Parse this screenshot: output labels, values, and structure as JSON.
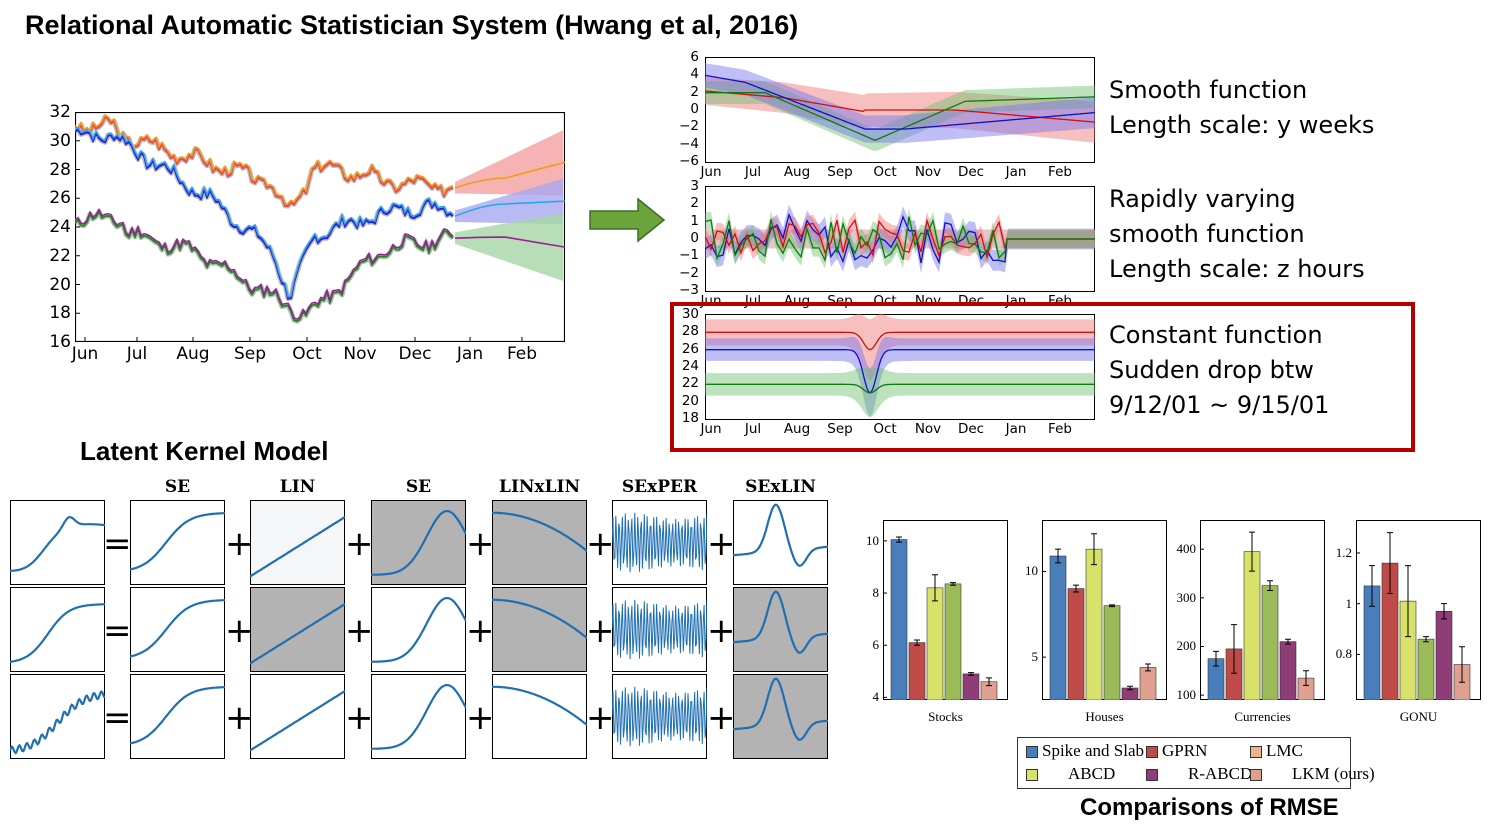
{
  "title": "Relational Automatic Statistician System (Hwang et al, 2016)",
  "months": [
    "Jun",
    "Jul",
    "Aug",
    "Sep",
    "Oct",
    "Nov",
    "Dec",
    "Jan",
    "Feb"
  ],
  "left_chart": {
    "y_ticks": [
      "32",
      "30",
      "28",
      "26",
      "24",
      "22",
      "20",
      "18",
      "16"
    ]
  },
  "components": [
    {
      "y_ticks": [
        "6",
        "4",
        "2",
        "0",
        "−2",
        "−4",
        "−6"
      ],
      "lines": [
        "Smooth function",
        "Length scale: y weeks"
      ]
    },
    {
      "y_ticks": [
        "3",
        "2",
        "1",
        "0",
        "−1",
        "−2",
        "−3"
      ],
      "lines": [
        "Rapidly varying",
        "smooth function",
        "Length scale: z hours"
      ]
    },
    {
      "y_ticks": [
        "30",
        "28",
        "26",
        "24",
        "22",
        "20",
        "18"
      ],
      "lines": [
        "Constant function",
        "Sudden drop btw",
        "9/12/01 ~ 9/15/01"
      ]
    }
  ],
  "latent_title": "Latent Kernel Model",
  "kernel_headers": [
    "SE",
    "LIN",
    "SE",
    "LINxLIN",
    "SExPER",
    "SExLIN"
  ],
  "operators": {
    "eq": "=",
    "plus": "+"
  },
  "rmse_title": "Comparisons of RMSE",
  "colors": {
    "red": "#e8484a",
    "orange": "#f39c12",
    "blue": "#2323e0",
    "cyan": "#2aa6e8",
    "green": "#1e8c1e",
    "purple": "#9b1b9b",
    "kernel": "#1f6fb2",
    "arrow": "#6aa43a",
    "box": "#b50000",
    "shade": "#b3b3b3",
    "bar_spike": "#4a7ebb",
    "bar_gprn": "#be4b48",
    "bar_lmc": "#f0b28c",
    "bar_abcd": "#d8e26a",
    "bar_rabcd": "#8e3d76",
    "bar_lkm": "#e0a090"
  },
  "chart_data": [
    {
      "type": "bar",
      "panel": "Stocks",
      "categories": [
        "Spike and Slab",
        "GPRN",
        "ABCD",
        "LMC",
        "R-ABCD",
        "LKM (ours)"
      ],
      "values": [
        10.05,
        6.1,
        8.2,
        8.35,
        4.9,
        4.6
      ],
      "errors": [
        0.1,
        0.1,
        0.5,
        0.05,
        0.05,
        0.15
      ],
      "y_ticks": [
        "10",
        "8",
        "6",
        "4"
      ],
      "ylim": [
        3.9,
        10.8
      ]
    },
    {
      "type": "bar",
      "panel": "Houses",
      "categories": [
        "Spike and Slab",
        "GPRN",
        "ABCD",
        "LMC",
        "R-ABCD",
        "LKM (ours)"
      ],
      "values": [
        10.9,
        9.0,
        11.3,
        8.0,
        3.2,
        4.4
      ],
      "errors": [
        0.4,
        0.2,
        0.9,
        0.05,
        0.1,
        0.2
      ],
      "y_ticks": [
        "10",
        "5"
      ],
      "ylim": [
        2.5,
        13.0
      ]
    },
    {
      "type": "bar",
      "panel": "Currencies",
      "categories": [
        "Spike and Slab",
        "GPRN",
        "ABCD",
        "LMC",
        "R-ABCD",
        "LKM (ours)"
      ],
      "values": [
        175,
        195,
        395,
        325,
        210,
        135
      ],
      "errors": [
        15,
        50,
        40,
        10,
        5,
        15
      ],
      "y_ticks": [
        "400",
        "300",
        "200",
        "100"
      ],
      "ylim": [
        90,
        460
      ]
    },
    {
      "type": "bar",
      "panel": "GONU",
      "categories": [
        "Spike and Slab",
        "GPRN",
        "ABCD",
        "LMC",
        "R-ABCD",
        "LKM (ours)"
      ],
      "values": [
        1.07,
        1.16,
        1.01,
        0.86,
        0.97,
        0.76
      ],
      "errors": [
        0.08,
        0.12,
        0.14,
        0.01,
        0.03,
        0.07
      ],
      "y_ticks": [
        "1.2",
        "1",
        "0.8"
      ],
      "ylim": [
        0.62,
        1.33
      ]
    }
  ],
  "legend": [
    "Spike and Slab",
    "GPRN",
    "LMC",
    "ABCD",
    "R-ABCD",
    "LKM (ours)"
  ]
}
